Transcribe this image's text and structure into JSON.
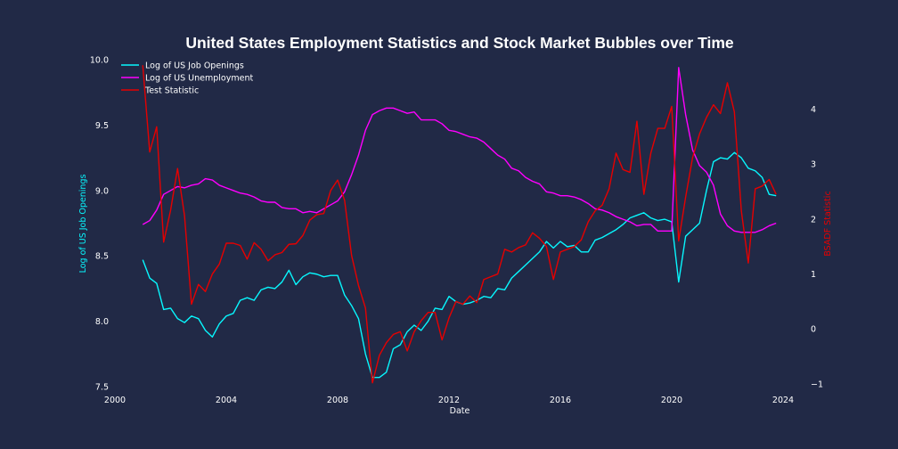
{
  "chart_data": {
    "type": "line",
    "title": "United States Employment Statistics and Stock Market Bubbles over Time",
    "xlabel": "Date",
    "ylabel_left": "Log of US Job Openings",
    "ylabel_right": "BSADF Statistic",
    "xlim": [
      2000,
      2024
    ],
    "ylim_left": [
      7.5,
      10.0
    ],
    "ylim_right": [
      -1.05,
      4.9
    ],
    "x_ticks": [
      "2000",
      "2004",
      "2008",
      "2012",
      "2016",
      "2020",
      "2024"
    ],
    "y_ticks_left": [
      "7.5",
      "8.0",
      "8.5",
      "9.0",
      "9.5",
      "10.0"
    ],
    "y_ticks_right": [
      "−1",
      "0",
      "1",
      "2",
      "3",
      "4"
    ],
    "y_tick_values_left": [
      7.5,
      8.0,
      8.5,
      9.0,
      9.5,
      10.0
    ],
    "y_tick_values_right": [
      -1,
      0,
      1,
      2,
      3,
      4
    ],
    "x_tick_values": [
      2000,
      2004,
      2008,
      2012,
      2016,
      2020,
      2024
    ],
    "grid": false,
    "legend_placement": "upper-left",
    "series": [
      {
        "name": "Log of US Job Openings",
        "axis": "left",
        "color": "#08F7FE",
        "x": [
          2001.0,
          2001.25,
          2001.5,
          2001.75,
          2002.0,
          2002.25,
          2002.5,
          2002.75,
          2003.0,
          2003.25,
          2003.5,
          2003.75,
          2004.0,
          2004.25,
          2004.5,
          2004.75,
          2005.0,
          2005.25,
          2005.5,
          2005.75,
          2006.0,
          2006.25,
          2006.5,
          2006.75,
          2007.0,
          2007.25,
          2007.5,
          2007.75,
          2008.0,
          2008.25,
          2008.5,
          2008.75,
          2009.0,
          2009.25,
          2009.5,
          2009.75,
          2010.0,
          2010.25,
          2010.5,
          2010.75,
          2011.0,
          2011.25,
          2011.5,
          2011.75,
          2012.0,
          2012.25,
          2012.5,
          2012.75,
          2013.0,
          2013.25,
          2013.5,
          2013.75,
          2014.0,
          2014.25,
          2014.5,
          2014.75,
          2015.0,
          2015.25,
          2015.5,
          2015.75,
          2016.0,
          2016.25,
          2016.5,
          2016.75,
          2017.0,
          2017.25,
          2017.5,
          2017.75,
          2018.0,
          2018.25,
          2018.5,
          2018.75,
          2019.0,
          2019.25,
          2019.5,
          2019.75,
          2020.0,
          2020.25,
          2020.5,
          2020.75,
          2021.0,
          2021.25,
          2021.5,
          2021.75,
          2022.0,
          2022.25,
          2022.5,
          2022.75,
          2023.0,
          2023.25,
          2023.5,
          2023.75
        ],
        "values": [
          8.47,
          8.33,
          8.29,
          8.09,
          8.1,
          8.02,
          7.99,
          8.04,
          8.02,
          7.93,
          7.88,
          7.98,
          8.04,
          8.06,
          8.16,
          8.18,
          8.16,
          8.24,
          8.26,
          8.25,
          8.3,
          8.39,
          8.28,
          8.34,
          8.37,
          8.36,
          8.34,
          8.35,
          8.35,
          8.2,
          8.12,
          8.02,
          7.75,
          7.57,
          7.57,
          7.61,
          7.79,
          7.82,
          7.92,
          7.97,
          7.93,
          8.0,
          8.1,
          8.09,
          8.19,
          8.15,
          8.13,
          8.14,
          8.16,
          8.19,
          8.18,
          8.25,
          8.24,
          8.33,
          8.38,
          8.43,
          8.48,
          8.53,
          8.61,
          8.56,
          8.61,
          8.57,
          8.58,
          8.53,
          8.53,
          8.62,
          8.64,
          8.67,
          8.7,
          8.74,
          8.79,
          8.81,
          8.83,
          8.79,
          8.77,
          8.78,
          8.76,
          8.3,
          8.65,
          8.7,
          8.75,
          9.0,
          9.22,
          9.25,
          9.24,
          9.29,
          9.25,
          9.17,
          9.15,
          9.1,
          8.97,
          8.96
        ]
      },
      {
        "name": "Log of US Unemployment",
        "axis": "left",
        "color": "#FF00FF",
        "x": [
          2001.0,
          2001.25,
          2001.5,
          2001.75,
          2002.0,
          2002.25,
          2002.5,
          2002.75,
          2003.0,
          2003.25,
          2003.5,
          2003.75,
          2004.0,
          2004.25,
          2004.5,
          2004.75,
          2005.0,
          2005.25,
          2005.5,
          2005.75,
          2006.0,
          2006.25,
          2006.5,
          2006.75,
          2007.0,
          2007.25,
          2007.5,
          2007.75,
          2008.0,
          2008.25,
          2008.5,
          2008.75,
          2009.0,
          2009.25,
          2009.5,
          2009.75,
          2010.0,
          2010.25,
          2010.5,
          2010.75,
          2011.0,
          2011.25,
          2011.5,
          2011.75,
          2012.0,
          2012.25,
          2012.5,
          2012.75,
          2013.0,
          2013.25,
          2013.5,
          2013.75,
          2014.0,
          2014.25,
          2014.5,
          2014.75,
          2015.0,
          2015.25,
          2015.5,
          2015.75,
          2016.0,
          2016.25,
          2016.5,
          2016.75,
          2017.0,
          2017.25,
          2017.5,
          2017.75,
          2018.0,
          2018.25,
          2018.5,
          2018.75,
          2019.0,
          2019.25,
          2019.5,
          2019.75,
          2020.0,
          2020.25,
          2020.5,
          2020.75,
          2021.0,
          2021.25,
          2021.5,
          2021.75,
          2022.0,
          2022.25,
          2022.5,
          2022.75,
          2023.0,
          2023.25,
          2023.5,
          2023.75
        ],
        "values": [
          8.74,
          8.77,
          8.85,
          8.97,
          9.0,
          9.03,
          9.02,
          9.04,
          9.05,
          9.09,
          9.08,
          9.04,
          9.02,
          9.0,
          8.98,
          8.97,
          8.95,
          8.92,
          8.91,
          8.91,
          8.87,
          8.86,
          8.86,
          8.83,
          8.84,
          8.83,
          8.86,
          8.89,
          8.92,
          8.99,
          9.12,
          9.27,
          9.46,
          9.58,
          9.61,
          9.63,
          9.63,
          9.61,
          9.59,
          9.6,
          9.54,
          9.54,
          9.54,
          9.51,
          9.46,
          9.45,
          9.43,
          9.41,
          9.4,
          9.37,
          9.32,
          9.27,
          9.24,
          9.17,
          9.15,
          9.1,
          9.07,
          9.05,
          8.99,
          8.98,
          8.96,
          8.96,
          8.95,
          8.93,
          8.9,
          8.86,
          8.85,
          8.83,
          8.8,
          8.78,
          8.76,
          8.73,
          8.74,
          8.74,
          8.69,
          8.69,
          8.69,
          9.94,
          9.58,
          9.31,
          9.19,
          9.14,
          9.04,
          8.82,
          8.73,
          8.69,
          8.68,
          8.68,
          8.68,
          8.7,
          8.73,
          8.75
        ]
      },
      {
        "name": "Test Statistic",
        "axis": "right",
        "color": "#E60000",
        "x": [
          2001.0,
          2001.25,
          2001.5,
          2001.75,
          2002.0,
          2002.25,
          2002.5,
          2002.75,
          2003.0,
          2003.25,
          2003.5,
          2003.75,
          2004.0,
          2004.25,
          2004.5,
          2004.75,
          2005.0,
          2005.25,
          2005.5,
          2005.75,
          2006.0,
          2006.25,
          2006.5,
          2006.75,
          2007.0,
          2007.25,
          2007.5,
          2007.75,
          2008.0,
          2008.25,
          2008.5,
          2008.75,
          2009.0,
          2009.25,
          2009.5,
          2009.75,
          2010.0,
          2010.25,
          2010.5,
          2010.75,
          2011.0,
          2011.25,
          2011.5,
          2011.75,
          2012.0,
          2012.25,
          2012.5,
          2012.75,
          2013.0,
          2013.25,
          2013.5,
          2013.75,
          2014.0,
          2014.25,
          2014.5,
          2014.75,
          2015.0,
          2015.25,
          2015.5,
          2015.75,
          2016.0,
          2016.25,
          2016.5,
          2016.75,
          2017.0,
          2017.25,
          2017.5,
          2017.75,
          2018.0,
          2018.25,
          2018.5,
          2018.75,
          2019.0,
          2019.25,
          2019.5,
          2019.75,
          2020.0,
          2020.25,
          2020.5,
          2020.75,
          2021.0,
          2021.25,
          2021.5,
          2021.75,
          2022.0,
          2022.25,
          2022.5,
          2022.75,
          2023.0,
          2023.25,
          2023.5,
          2023.75
        ],
        "values": [
          4.8,
          3.22,
          3.68,
          1.58,
          2.16,
          2.92,
          2.06,
          0.45,
          0.81,
          0.68,
          1.0,
          1.18,
          1.56,
          1.56,
          1.52,
          1.27,
          1.57,
          1.45,
          1.24,
          1.35,
          1.39,
          1.54,
          1.55,
          1.7,
          1.98,
          2.08,
          2.1,
          2.52,
          2.71,
          2.34,
          1.34,
          0.79,
          0.38,
          -0.98,
          -0.48,
          -0.25,
          -0.1,
          -0.05,
          -0.4,
          -0.05,
          0.15,
          0.3,
          0.3,
          -0.2,
          0.2,
          0.5,
          0.45,
          0.6,
          0.48,
          0.9,
          0.95,
          1.0,
          1.45,
          1.4,
          1.48,
          1.53,
          1.75,
          1.65,
          1.5,
          0.9,
          1.4,
          1.45,
          1.5,
          1.62,
          1.95,
          2.15,
          2.25,
          2.55,
          3.2,
          2.9,
          2.85,
          3.78,
          2.45,
          3.2,
          3.65,
          3.65,
          4.05,
          1.6,
          2.4,
          3.12,
          3.55,
          3.85,
          4.08,
          3.92,
          4.48,
          3.95,
          2.15,
          1.2,
          2.55,
          2.6,
          2.72,
          2.45
        ]
      }
    ]
  }
}
